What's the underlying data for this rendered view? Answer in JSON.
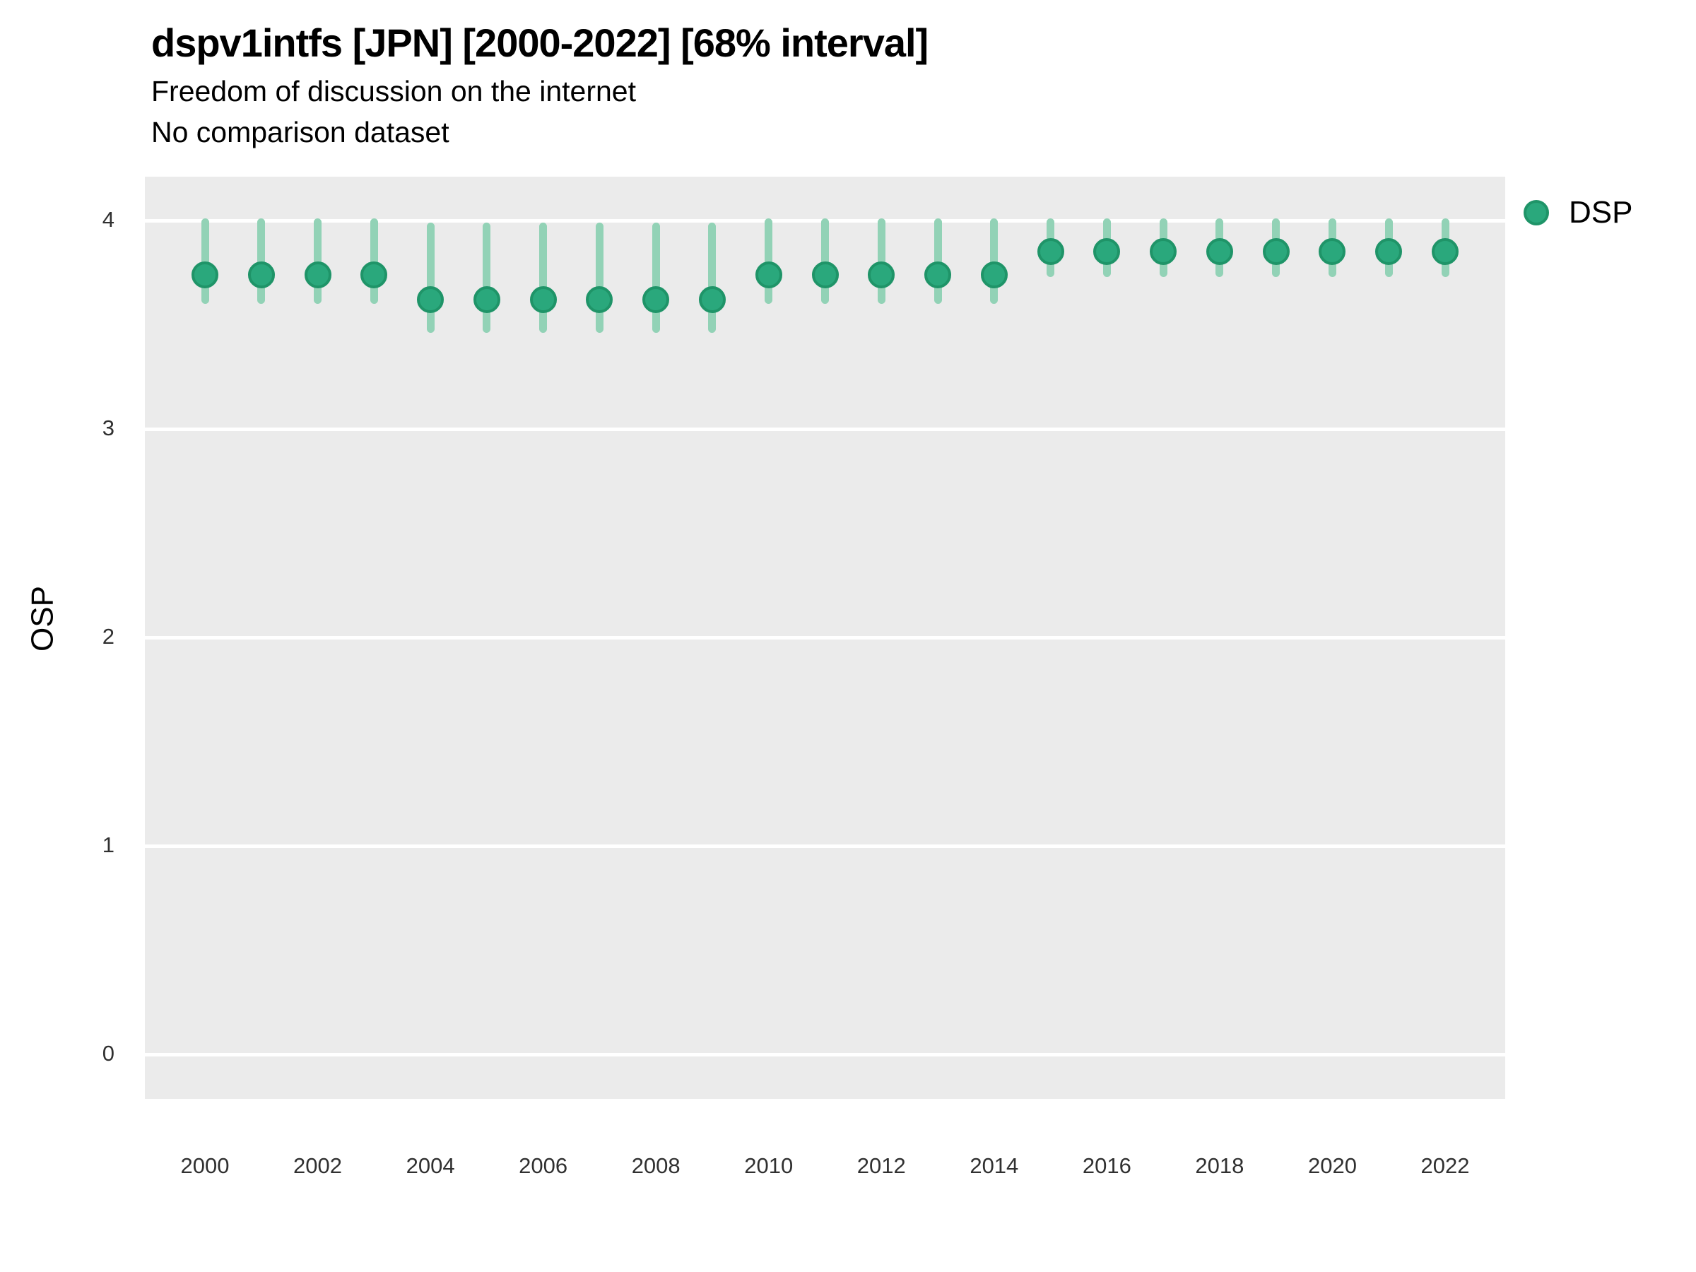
{
  "header": {
    "title": "dspv1intfs [JPN] [2000-2022] [68% interval]",
    "subtitle_line1": "Freedom of discussion on the internet",
    "subtitle_line2": "No comparison dataset"
  },
  "axes": {
    "y_title": "OSP",
    "y_breaks": [
      0,
      1,
      2,
      3,
      4
    ],
    "x_tick_years": [
      2000,
      2002,
      2004,
      2006,
      2008,
      2010,
      2012,
      2014,
      2016,
      2018,
      2020,
      2022
    ]
  },
  "legend": {
    "items": [
      {
        "label": "DSP",
        "color": "#2aa87c"
      }
    ]
  },
  "colors": {
    "point_fill": "#2aa87c",
    "point_border": "#1f9468",
    "interval_bar": "#92d2b6",
    "panel_background": "#ebebeb",
    "gridline": "#ffffff"
  },
  "chart_data": {
    "type": "pointrange",
    "title": "dspv1intfs [JPN] [2000-2022] [68% interval]",
    "subtitle": [
      "Freedom of discussion on the internet",
      "No comparison dataset"
    ],
    "interval": "68%",
    "country": "JPN",
    "xlabel": "",
    "ylabel": "OSP",
    "ylim": [
      -0.21,
      4.21
    ],
    "y_breaks": [
      0,
      1,
      2,
      3,
      4
    ],
    "grid": true,
    "legend_position": "right",
    "x": [
      2000,
      2001,
      2002,
      2003,
      2004,
      2005,
      2006,
      2007,
      2008,
      2009,
      2010,
      2011,
      2012,
      2013,
      2014,
      2015,
      2016,
      2017,
      2018,
      2019,
      2020,
      2021,
      2022
    ],
    "series": [
      {
        "name": "DSP",
        "values": [
          3.74,
          3.74,
          3.74,
          3.74,
          3.62,
          3.62,
          3.62,
          3.62,
          3.62,
          3.62,
          3.74,
          3.74,
          3.74,
          3.74,
          3.74,
          3.85,
          3.85,
          3.85,
          3.85,
          3.85,
          3.85,
          3.85,
          3.85
        ],
        "lower": [
          3.61,
          3.61,
          3.61,
          3.61,
          3.47,
          3.47,
          3.47,
          3.47,
          3.47,
          3.47,
          3.61,
          3.61,
          3.61,
          3.61,
          3.61,
          3.74,
          3.74,
          3.74,
          3.74,
          3.74,
          3.74,
          3.74,
          3.74
        ],
        "upper": [
          4.0,
          4.0,
          4.0,
          4.0,
          3.98,
          3.98,
          3.98,
          3.98,
          3.98,
          3.98,
          4.0,
          4.0,
          4.0,
          4.0,
          4.0,
          4.0,
          4.0,
          4.0,
          4.0,
          4.0,
          4.0,
          4.0,
          4.0
        ]
      }
    ]
  }
}
